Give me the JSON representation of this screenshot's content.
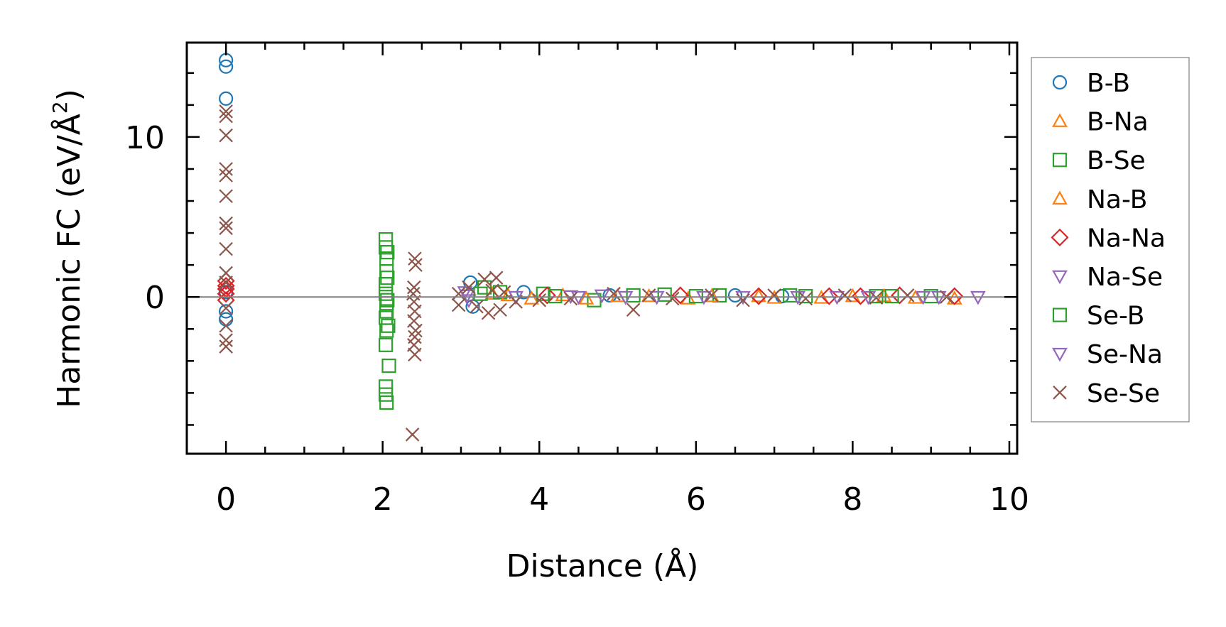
{
  "chart_data": {
    "type": "scatter",
    "title": "",
    "xlabel": "Distance (Å)",
    "ylabel_main": "Harmonic FC (eV/Å",
    "ylabel_sup": "2",
    "ylabel_close": ")",
    "xlim": [
      -0.5,
      10.1
    ],
    "ylim": [
      -9.8,
      15.9
    ],
    "xticks": [
      0,
      2,
      4,
      6,
      8,
      10
    ],
    "xtick_labels": [
      "0",
      "2",
      "4",
      "6",
      "8",
      "10"
    ],
    "yticks": [
      0,
      10
    ],
    "ytick_labels": [
      "0",
      "10"
    ],
    "x_minor_step": 0.5,
    "y_minor_step": 2,
    "zero_line": true,
    "zero_line_color": "#808080",
    "grid": false,
    "legend_position": "outside-right",
    "series": [
      {
        "name": "B-B",
        "marker": "circle",
        "color": "#1f77b4",
        "points": [
          [
            0,
            14.8
          ],
          [
            0,
            14.4
          ],
          [
            0,
            12.4
          ],
          [
            0,
            -0.9
          ],
          [
            0,
            -1.4
          ],
          [
            0,
            0.3
          ],
          [
            3.12,
            0.9
          ],
          [
            3.15,
            -0.6
          ],
          [
            3.8,
            0.3
          ],
          [
            4.9,
            0.1
          ],
          [
            6.5,
            0.1
          ],
          [
            7.1,
            0.05
          ]
        ]
      },
      {
        "name": "B-Na",
        "marker": "triangle-up",
        "color": "#ff7f0e",
        "points": [
          [
            3.4,
            0.2
          ],
          [
            3.9,
            -0.1
          ],
          [
            4.3,
            0.1
          ],
          [
            5.0,
            0.05
          ],
          [
            5.9,
            -0.1
          ],
          [
            6.8,
            0.05
          ],
          [
            7.6,
            -0.05
          ],
          [
            8.4,
            0.05
          ],
          [
            9.3,
            -0.1
          ]
        ]
      },
      {
        "name": "B-Se",
        "marker": "square",
        "color": "#2ca02c",
        "points": [
          [
            2.04,
            3.6
          ],
          [
            2.04,
            3.1
          ],
          [
            2.05,
            2.4
          ],
          [
            2.05,
            1.6
          ],
          [
            2.04,
            0.8
          ],
          [
            2.04,
            0.2
          ],
          [
            2.05,
            -0.4
          ],
          [
            2.05,
            -0.9
          ],
          [
            2.04,
            -1.3
          ],
          [
            2.05,
            -2.1
          ],
          [
            2.04,
            -3.0
          ],
          [
            2.08,
            -4.3
          ],
          [
            2.04,
            -5.6
          ],
          [
            2.04,
            -6.1
          ],
          [
            2.05,
            -6.6
          ],
          [
            3.3,
            0.6
          ],
          [
            3.5,
            0.3
          ],
          [
            4.05,
            0.2
          ],
          [
            4.7,
            -0.2
          ],
          [
            5.6,
            0.15
          ],
          [
            6.3,
            0.1
          ],
          [
            7.4,
            0.05
          ],
          [
            8.3,
            0.05
          ],
          [
            9.0,
            0.05
          ]
        ]
      },
      {
        "name": "Na-B",
        "marker": "triangle-up",
        "color": "#ff7f0e",
        "points": [
          [
            3.6,
            0.1
          ],
          [
            4.6,
            -0.1
          ],
          [
            5.4,
            0.05
          ],
          [
            6.2,
            0.05
          ],
          [
            7.0,
            -0.05
          ],
          [
            8.0,
            0.05
          ],
          [
            8.8,
            -0.05
          ]
        ]
      },
      {
        "name": "Na-Na",
        "marker": "diamond",
        "color": "#d62728",
        "points": [
          [
            0,
            1.0
          ],
          [
            0,
            0.7
          ],
          [
            0,
            0.2
          ],
          [
            0,
            -0.2
          ],
          [
            0,
            0.5
          ],
          [
            4.1,
            0.1
          ],
          [
            5.8,
            0.1
          ],
          [
            6.8,
            0.05
          ],
          [
            7.7,
            0.05
          ],
          [
            8.1,
            0.05
          ],
          [
            8.6,
            0.1
          ],
          [
            9.3,
            0.05
          ]
        ]
      },
      {
        "name": "Na-Se",
        "marker": "triangle-down",
        "color": "#9467bd",
        "points": [
          [
            3.05,
            0.3
          ],
          [
            3.1,
            -0.2
          ],
          [
            4.4,
            0.05
          ],
          [
            4.8,
            0.1
          ],
          [
            5.5,
            0.0
          ],
          [
            6.6,
            0.0
          ],
          [
            7.8,
            0.0
          ],
          [
            8.9,
            0.0
          ],
          [
            9.6,
            0.0
          ]
        ]
      },
      {
        "name": "Se-B",
        "marker": "square",
        "color": "#2ca02c",
        "points": [
          [
            2.06,
            1.2
          ],
          [
            2.06,
            -0.2
          ],
          [
            2.07,
            -1.8
          ],
          [
            2.06,
            2.8
          ],
          [
            3.25,
            0.2
          ],
          [
            4.2,
            0.05
          ],
          [
            5.2,
            0.1
          ],
          [
            6.0,
            0.05
          ],
          [
            7.2,
            0.1
          ],
          [
            8.5,
            0.05
          ]
        ]
      },
      {
        "name": "Se-Na",
        "marker": "triangle-down",
        "color": "#9467bd",
        "points": [
          [
            3.08,
            0.1
          ],
          [
            3.7,
            0.0
          ],
          [
            4.5,
            0.0
          ],
          [
            5.1,
            0.0
          ],
          [
            6.1,
            0.0
          ],
          [
            7.3,
            0.0
          ],
          [
            8.2,
            0.0
          ],
          [
            9.1,
            0.0
          ]
        ]
      },
      {
        "name": "Se-Se",
        "marker": "x",
        "color": "#8c564b",
        "points": [
          [
            0,
            11.6
          ],
          [
            0,
            11.3
          ],
          [
            0,
            10.1
          ],
          [
            0,
            8.0
          ],
          [
            0,
            7.6
          ],
          [
            0,
            6.3
          ],
          [
            0,
            4.6
          ],
          [
            0,
            4.3
          ],
          [
            0,
            3.0
          ],
          [
            0,
            1.5
          ],
          [
            0,
            0.9
          ],
          [
            0,
            -0.7
          ],
          [
            0,
            -1.8
          ],
          [
            0,
            -2.7
          ],
          [
            0,
            -3.1
          ],
          [
            2.41,
            2.4
          ],
          [
            2.42,
            2.0
          ],
          [
            2.4,
            0.6
          ],
          [
            2.39,
            0.2
          ],
          [
            2.4,
            -0.3
          ],
          [
            2.41,
            -0.9
          ],
          [
            2.4,
            -1.5
          ],
          [
            2.42,
            -2.1
          ],
          [
            2.41,
            -2.5
          ],
          [
            2.4,
            -3.0
          ],
          [
            2.41,
            -3.6
          ],
          [
            2.38,
            -8.6
          ],
          [
            2.97,
            0.2
          ],
          [
            2.97,
            -0.5
          ],
          [
            3.1,
            0.6
          ],
          [
            3.2,
            -0.6
          ],
          [
            3.3,
            1.1
          ],
          [
            3.35,
            -1.0
          ],
          [
            3.4,
            0.4
          ],
          [
            3.45,
            1.2
          ],
          [
            3.5,
            -0.8
          ],
          [
            3.55,
            0.3
          ],
          [
            3.7,
            -0.3
          ],
          [
            4.0,
            -0.2
          ],
          [
            4.4,
            -0.1
          ],
          [
            4.95,
            0.2
          ],
          [
            5.2,
            -0.8
          ],
          [
            5.4,
            0.1
          ],
          [
            5.7,
            -0.1
          ],
          [
            6.2,
            0.1
          ],
          [
            6.6,
            -0.2
          ],
          [
            7.0,
            0.1
          ],
          [
            7.4,
            -0.1
          ],
          [
            7.9,
            0.1
          ],
          [
            8.3,
            -0.05
          ],
          [
            8.7,
            0.1
          ],
          [
            9.2,
            0.0
          ]
        ]
      }
    ]
  }
}
